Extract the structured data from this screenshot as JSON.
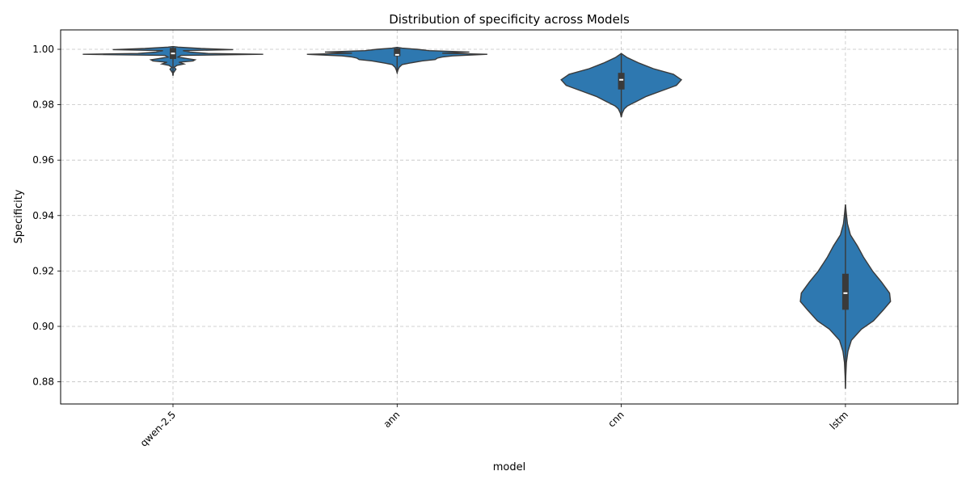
{
  "chart_data": {
    "type": "violin",
    "title": "Distribution of specificity across Models",
    "xlabel": "model",
    "ylabel": "Specificity",
    "ylim": [
      0.872,
      1.007
    ],
    "yticks": [
      0.88,
      0.9,
      0.92,
      0.94,
      0.96,
      0.98,
      1.0
    ],
    "ytick_labels": [
      "0.88",
      "0.90",
      "0.92",
      "0.94",
      "0.96",
      "0.98",
      "1.00"
    ],
    "grid": true,
    "color": "#2e78b0",
    "categories": [
      "qwen-2.5",
      "ann",
      "cnn",
      "lstm"
    ],
    "violins": [
      {
        "name": "qwen-2.5",
        "min": 0.9905,
        "q1": 0.9965,
        "median": 0.9985,
        "q3": 1.0005,
        "max": 1.001,
        "profile": [
          [
            0.9905,
            0.0
          ],
          [
            0.9915,
            0.004
          ],
          [
            0.9923,
            0.02
          ],
          [
            0.9928,
            0.03
          ],
          [
            0.9935,
            0.012
          ],
          [
            0.9942,
            0.04
          ],
          [
            0.9947,
            0.11
          ],
          [
            0.9953,
            0.06
          ],
          [
            0.9958,
            0.2
          ],
          [
            0.9962,
            0.22
          ],
          [
            0.9966,
            0.15
          ],
          [
            0.9972,
            0.05
          ],
          [
            0.9978,
            0.08
          ],
          [
            0.9982,
            0.9
          ],
          [
            0.9985,
            0.35
          ],
          [
            0.999,
            0.17
          ],
          [
            0.9995,
            0.1
          ],
          [
            0.9999,
            0.6
          ],
          [
            1.0003,
            0.28
          ],
          [
            1.0008,
            0.05
          ],
          [
            1.001,
            0.0
          ]
        ]
      },
      {
        "name": "ann",
        "min": 0.9915,
        "q1": 0.9975,
        "median": 0.998,
        "q3": 1.0003,
        "max": 1.0007,
        "profile": [
          [
            0.9915,
            0.0
          ],
          [
            0.9925,
            0.008
          ],
          [
            0.9935,
            0.02
          ],
          [
            0.9945,
            0.05
          ],
          [
            0.995,
            0.12
          ],
          [
            0.9958,
            0.25
          ],
          [
            0.9963,
            0.38
          ],
          [
            0.9968,
            0.4
          ],
          [
            0.9972,
            0.45
          ],
          [
            0.9976,
            0.55
          ],
          [
            0.9982,
            0.9
          ],
          [
            0.9986,
            0.45
          ],
          [
            0.999,
            0.72
          ],
          [
            0.9995,
            0.32
          ],
          [
            1.0,
            0.2
          ],
          [
            1.0004,
            0.05
          ],
          [
            1.0007,
            0.0
          ]
        ]
      },
      {
        "name": "cnn",
        "min": 0.9755,
        "q1": 0.9855,
        "median": 0.989,
        "q3": 0.9915,
        "max": 0.9985,
        "profile": [
          [
            0.9755,
            0.0
          ],
          [
            0.977,
            0.01
          ],
          [
            0.9785,
            0.03
          ],
          [
            0.9795,
            0.06
          ],
          [
            0.981,
            0.14
          ],
          [
            0.983,
            0.25
          ],
          [
            0.985,
            0.4
          ],
          [
            0.987,
            0.55
          ],
          [
            0.989,
            0.6
          ],
          [
            0.991,
            0.52
          ],
          [
            0.993,
            0.32
          ],
          [
            0.995,
            0.18
          ],
          [
            0.997,
            0.06
          ],
          [
            0.998,
            0.02
          ],
          [
            0.9985,
            0.0
          ]
        ]
      },
      {
        "name": "lstm",
        "min": 0.8775,
        "q1": 0.906,
        "median": 0.912,
        "q3": 0.919,
        "max": 0.944,
        "profile": [
          [
            0.8775,
            0.0
          ],
          [
            0.882,
            0.003
          ],
          [
            0.887,
            0.01
          ],
          [
            0.891,
            0.025
          ],
          [
            0.895,
            0.06
          ],
          [
            0.899,
            0.16
          ],
          [
            0.902,
            0.28
          ],
          [
            0.906,
            0.38
          ],
          [
            0.909,
            0.45
          ],
          [
            0.912,
            0.44
          ],
          [
            0.916,
            0.36
          ],
          [
            0.92,
            0.27
          ],
          [
            0.925,
            0.18
          ],
          [
            0.929,
            0.12
          ],
          [
            0.933,
            0.05
          ],
          [
            0.937,
            0.02
          ],
          [
            0.941,
            0.008
          ],
          [
            0.944,
            0.0
          ]
        ]
      }
    ]
  }
}
